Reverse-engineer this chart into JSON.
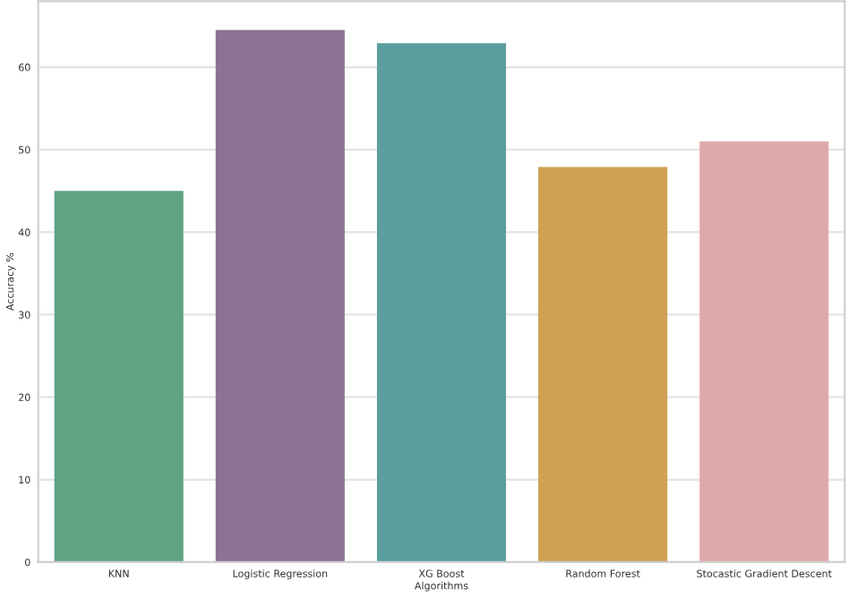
{
  "chart_data": {
    "type": "bar",
    "xlabel": "Algorithms",
    "ylabel": "Accuracy %",
    "categories": [
      "KNN",
      "Logistic Regression",
      "XG Boost",
      "Random Forest",
      "Stocastic Gradient Descent"
    ],
    "values": [
      45,
      64.5,
      62.9,
      47.9,
      51.0
    ],
    "colors": [
      "#5fa383",
      "#8c7292",
      "#5a9e9e",
      "#cfa152",
      "#e0a9a9"
    ],
    "ylim": [
      0,
      68
    ],
    "yticks": [
      0,
      10,
      20,
      30,
      40,
      50,
      60
    ],
    "grid": "y"
  }
}
